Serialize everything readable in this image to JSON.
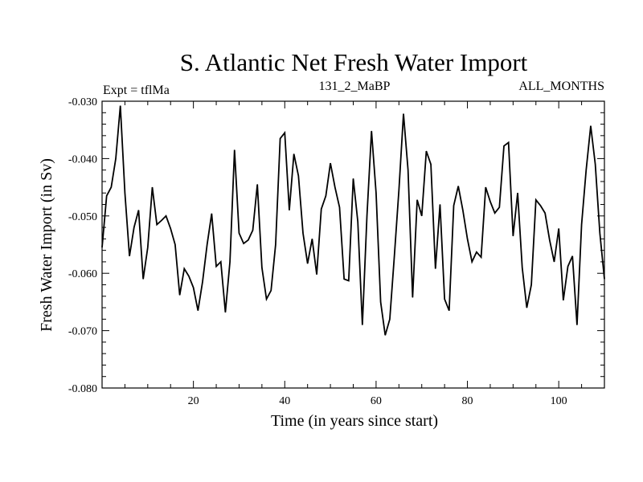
{
  "chart_data": {
    "type": "line",
    "title": "S. Atlantic Net Fresh Water Import",
    "subtitle_left": "Expt = tflMa",
    "subtitle_center": "131_2_MaBP",
    "subtitle_right": "ALL_MONTHS",
    "xlabel": "Time (in years since start)",
    "ylabel": "Fresh Water Import (in Sv)",
    "xlim": [
      0,
      110
    ],
    "ylim": [
      -0.08,
      -0.03
    ],
    "x_ticks": [
      20,
      40,
      60,
      80,
      100
    ],
    "x_tick_labels": [
      "20",
      "40",
      "60",
      "80",
      "100"
    ],
    "y_ticks": [
      -0.03,
      -0.04,
      -0.05,
      -0.06,
      -0.07,
      -0.08
    ],
    "y_tick_labels": [
      "-0.030",
      "-0.040",
      "-0.050",
      "-0.060",
      "-0.070",
      "-0.080"
    ],
    "series": [
      {
        "name": "Fresh Water Import",
        "color": "#000000",
        "x": [
          0,
          1,
          2,
          3,
          4,
          5,
          6,
          7,
          8,
          9,
          10,
          11,
          12,
          13,
          14,
          15,
          16,
          17,
          18,
          19,
          20,
          21,
          22,
          23,
          24,
          25,
          26,
          27,
          28,
          29,
          30,
          31,
          32,
          33,
          34,
          35,
          36,
          37,
          38,
          39,
          40,
          41,
          42,
          43,
          44,
          45,
          46,
          47,
          48,
          49,
          50,
          51,
          52,
          53,
          54,
          55,
          56,
          57,
          58,
          59,
          60,
          61,
          62,
          63,
          64,
          65,
          66,
          67,
          68,
          69,
          70,
          71,
          72,
          73,
          74,
          75,
          76,
          77,
          78,
          79,
          80,
          81,
          82,
          83,
          84,
          85,
          86,
          87,
          88,
          89,
          90,
          91,
          92,
          93,
          94,
          95,
          96,
          97,
          98,
          99,
          100,
          101,
          102,
          103,
          104,
          105,
          106,
          107,
          108,
          109,
          110
        ],
        "values": [
          -0.0555,
          -0.0465,
          -0.045,
          -0.04,
          -0.0308,
          -0.046,
          -0.057,
          -0.052,
          -0.049,
          -0.061,
          -0.0555,
          -0.045,
          -0.0515,
          -0.0508,
          -0.05,
          -0.0522,
          -0.055,
          -0.0638,
          -0.0592,
          -0.0605,
          -0.0625,
          -0.0665,
          -0.0615,
          -0.055,
          -0.0496,
          -0.0588,
          -0.058,
          -0.0668,
          -0.058,
          -0.0385,
          -0.053,
          -0.0548,
          -0.0542,
          -0.0525,
          -0.0445,
          -0.059,
          -0.0645,
          -0.063,
          -0.055,
          -0.0365,
          -0.0355,
          -0.049,
          -0.0392,
          -0.043,
          -0.053,
          -0.0583,
          -0.054,
          -0.0602,
          -0.0488,
          -0.0465,
          -0.0408,
          -0.045,
          -0.0485,
          -0.061,
          -0.0613,
          -0.0435,
          -0.051,
          -0.069,
          -0.05,
          -0.0352,
          -0.046,
          -0.065,
          -0.0708,
          -0.068,
          -0.057,
          -0.0455,
          -0.0322,
          -0.042,
          -0.0642,
          -0.0472,
          -0.05,
          -0.0387,
          -0.041,
          -0.0592,
          -0.048,
          -0.0645,
          -0.0665,
          -0.0482,
          -0.0448,
          -0.049,
          -0.054,
          -0.058,
          -0.0563,
          -0.0572,
          -0.045,
          -0.0475,
          -0.0495,
          -0.0485,
          -0.0378,
          -0.0372,
          -0.0535,
          -0.046,
          -0.059,
          -0.066,
          -0.062,
          -0.0472,
          -0.0482,
          -0.0495,
          -0.0542,
          -0.058,
          -0.0522,
          -0.0647,
          -0.0588,
          -0.057,
          -0.069,
          -0.0515,
          -0.042,
          -0.0343,
          -0.041,
          -0.053,
          -0.061
        ]
      }
    ]
  }
}
